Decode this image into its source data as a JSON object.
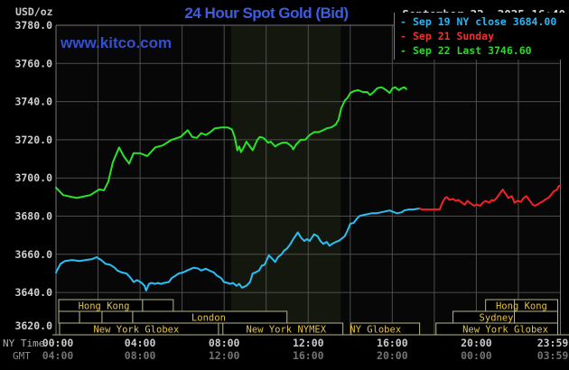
{
  "header": {
    "units": "USD/oz",
    "title": "24 Hour Spot Gold (Bid)",
    "datetime": "September 22, 2025 16:40"
  },
  "watermark": "www.kitco.com",
  "legend": {
    "items": [
      {
        "label": "Sep 19 NY close 3684.00",
        "color": "#29b6f2"
      },
      {
        "label": "Sep 21 Sunday",
        "color": "#f23030"
      },
      {
        "label": "Sep 22 Last 3746.60",
        "color": "#2ad82a"
      }
    ]
  },
  "axes": {
    "ny_time_caption": "NY Time",
    "gmt_caption": "GMT",
    "y_ticks": [
      {
        "v": 3780,
        "label": "3780.0"
      },
      {
        "v": 3760,
        "label": "3760.0"
      },
      {
        "v": 3740,
        "label": "3740.0"
      },
      {
        "v": 3720,
        "label": "3720.0"
      },
      {
        "v": 3700,
        "label": "3700.0"
      },
      {
        "v": 3680,
        "label": "3680.0"
      },
      {
        "v": 3660,
        "label": "3660.0"
      },
      {
        "v": 3640,
        "label": "3640.0"
      },
      {
        "v": 3620,
        "label": "3620.0"
      }
    ],
    "x_ticks": [
      {
        "t": 0,
        "ny": "00:00",
        "gmt": "04:00"
      },
      {
        "t": 4,
        "ny": "04:00",
        "gmt": "08:00"
      },
      {
        "t": 8,
        "ny": "08:00",
        "gmt": "12:00"
      },
      {
        "t": 12,
        "ny": "12:00",
        "gmt": "16:00"
      },
      {
        "t": 16,
        "ny": "16:00",
        "gmt": "20:00"
      },
      {
        "t": 20,
        "ny": "20:00",
        "gmt": "00:00"
      },
      {
        "t": 23.983,
        "ny": "23:59",
        "gmt": "03:59"
      }
    ]
  },
  "chart_data": {
    "type": "line",
    "title": "24 Hour Spot Gold (Bid)",
    "ylabel": "USD/oz",
    "xlabel": "NY Time (hours)",
    "xlim": [
      0,
      24
    ],
    "ylim": [
      3620,
      3780
    ],
    "grid": {
      "x_step_hours": 2,
      "y_step": 20,
      "color": "#4e4e4e"
    },
    "highlight_band_hours": [
      8.33,
      13.55
    ],
    "series": [
      {
        "name": "Sep 19 NY close 3684.00",
        "color": "#29c0f5",
        "points": [
          [
            0,
            3650.5
          ],
          [
            0.21,
            3655
          ],
          [
            0.43,
            3656.5
          ],
          [
            0.77,
            3657
          ],
          [
            1.12,
            3656.5
          ],
          [
            1.42,
            3657
          ],
          [
            1.72,
            3657.5
          ],
          [
            1.93,
            3658.5
          ],
          [
            2.15,
            3657
          ],
          [
            2.36,
            3655
          ],
          [
            2.58,
            3654.5
          ],
          [
            2.79,
            3653
          ],
          [
            2.92,
            3651.5
          ],
          [
            3.13,
            3650.5
          ],
          [
            3.35,
            3650
          ],
          [
            3.56,
            3647.5
          ],
          [
            3.69,
            3645.5
          ],
          [
            3.86,
            3646.5
          ],
          [
            4.08,
            3645
          ],
          [
            4.21,
            3643.5
          ],
          [
            4.29,
            3641
          ],
          [
            4.42,
            3644.5
          ],
          [
            4.55,
            3645
          ],
          [
            4.72,
            3644.5
          ],
          [
            4.85,
            3645
          ],
          [
            4.98,
            3644.5
          ],
          [
            5.15,
            3645
          ],
          [
            5.37,
            3645.5
          ],
          [
            5.5,
            3647.5
          ],
          [
            5.71,
            3649
          ],
          [
            5.84,
            3650
          ],
          [
            6.05,
            3650.5
          ],
          [
            6.23,
            3651.5
          ],
          [
            6.44,
            3652.5
          ],
          [
            6.57,
            3653
          ],
          [
            6.78,
            3652.5
          ],
          [
            6.91,
            3651.5
          ],
          [
            7.13,
            3652.5
          ],
          [
            7.3,
            3651.5
          ],
          [
            7.51,
            3650.5
          ],
          [
            7.64,
            3649
          ],
          [
            7.86,
            3647.5
          ],
          [
            7.99,
            3645.5
          ],
          [
            8.16,
            3645
          ],
          [
            8.29,
            3644.5
          ],
          [
            8.42,
            3645
          ],
          [
            8.59,
            3643.5
          ],
          [
            8.72,
            3644.5
          ],
          [
            8.85,
            3642.5
          ],
          [
            9.06,
            3643.5
          ],
          [
            9.23,
            3645.5
          ],
          [
            9.36,
            3650
          ],
          [
            9.49,
            3650.5
          ],
          [
            9.66,
            3651.5
          ],
          [
            9.79,
            3654
          ],
          [
            9.92,
            3654.5
          ],
          [
            10.09,
            3658.5
          ],
          [
            10.13,
            3659.5
          ],
          [
            10.3,
            3657.5
          ],
          [
            10.43,
            3656
          ],
          [
            10.56,
            3658.5
          ],
          [
            10.73,
            3660
          ],
          [
            10.86,
            3662
          ],
          [
            10.99,
            3663
          ],
          [
            11.16,
            3665.5
          ],
          [
            11.29,
            3668
          ],
          [
            11.51,
            3671.5
          ],
          [
            11.64,
            3669
          ],
          [
            11.81,
            3667
          ],
          [
            11.94,
            3668
          ],
          [
            12.07,
            3667
          ],
          [
            12.28,
            3670.5
          ],
          [
            12.45,
            3669.5
          ],
          [
            12.58,
            3667
          ],
          [
            12.71,
            3665.5
          ],
          [
            12.88,
            3666.5
          ],
          [
            13.01,
            3664.5
          ],
          [
            13.14,
            3665.5
          ],
          [
            13.31,
            3666.5
          ],
          [
            13.44,
            3667
          ],
          [
            13.57,
            3668
          ],
          [
            13.74,
            3669.5
          ],
          [
            13.87,
            3672.5
          ],
          [
            14,
            3676
          ],
          [
            14.17,
            3676.5
          ],
          [
            14.3,
            3678.5
          ],
          [
            14.43,
            3680
          ],
          [
            14.6,
            3680.5
          ],
          [
            14.81,
            3681
          ],
          [
            15.02,
            3681.5
          ],
          [
            15.24,
            3681.5
          ],
          [
            15.46,
            3682
          ],
          [
            15.67,
            3682.5
          ],
          [
            15.88,
            3683
          ],
          [
            16.1,
            3682
          ],
          [
            16.23,
            3681.5
          ],
          [
            16.44,
            3682
          ],
          [
            16.57,
            3683
          ],
          [
            16.79,
            3683.5
          ],
          [
            17,
            3683.5
          ],
          [
            17.3,
            3684
          ]
        ]
      },
      {
        "name": "Sep 21 Sunday",
        "color": "#f52222",
        "points": [
          [
            17.3,
            3684
          ],
          [
            17.4,
            3683.5
          ],
          [
            18.08,
            3683.5
          ],
          [
            18.25,
            3683.5
          ],
          [
            18.38,
            3687
          ],
          [
            18.51,
            3689.5
          ],
          [
            18.6,
            3690
          ],
          [
            18.72,
            3688.5
          ],
          [
            18.9,
            3689
          ],
          [
            19.02,
            3688
          ],
          [
            19.15,
            3688.5
          ],
          [
            19.32,
            3687
          ],
          [
            19.45,
            3686
          ],
          [
            19.58,
            3688
          ],
          [
            19.75,
            3686.5
          ],
          [
            19.88,
            3685.5
          ],
          [
            20.01,
            3686
          ],
          [
            20.18,
            3685.5
          ],
          [
            20.31,
            3687
          ],
          [
            20.44,
            3688
          ],
          [
            20.61,
            3687
          ],
          [
            20.74,
            3688.5
          ],
          [
            20.83,
            3688
          ],
          [
            20.96,
            3689.5
          ],
          [
            21.09,
            3691.5
          ],
          [
            21.26,
            3694
          ],
          [
            21.3,
            3693
          ],
          [
            21.47,
            3690.5
          ],
          [
            21.52,
            3689.5
          ],
          [
            21.69,
            3690.5
          ],
          [
            21.82,
            3687
          ],
          [
            21.95,
            3688
          ],
          [
            22.12,
            3687.5
          ],
          [
            22.25,
            3689.5
          ],
          [
            22.38,
            3690.5
          ],
          [
            22.55,
            3688
          ],
          [
            22.68,
            3686
          ],
          [
            22.77,
            3685.5
          ],
          [
            22.9,
            3686
          ],
          [
            23.03,
            3687
          ],
          [
            23.2,
            3688
          ],
          [
            23.25,
            3688.5
          ],
          [
            23.42,
            3689.5
          ],
          [
            23.55,
            3691
          ],
          [
            23.68,
            3693
          ],
          [
            23.85,
            3694
          ],
          [
            23.9,
            3695.5
          ],
          [
            23.98,
            3696
          ]
        ]
      },
      {
        "name": "Sep 22 Last 3746.60",
        "color": "#2ae42a",
        "points": [
          [
            0,
            3695
          ],
          [
            0.34,
            3691
          ],
          [
            0.99,
            3689.5
          ],
          [
            1.63,
            3691
          ],
          [
            2.06,
            3694
          ],
          [
            2.28,
            3693.5
          ],
          [
            2.49,
            3698
          ],
          [
            2.7,
            3708
          ],
          [
            3,
            3716
          ],
          [
            3.22,
            3711.5
          ],
          [
            3.48,
            3707.5
          ],
          [
            3.69,
            3713
          ],
          [
            3.99,
            3713
          ],
          [
            4.34,
            3711.5
          ],
          [
            4.72,
            3716
          ],
          [
            5.07,
            3717
          ],
          [
            5.5,
            3720
          ],
          [
            5.92,
            3721.5
          ],
          [
            6.27,
            3725
          ],
          [
            6.48,
            3721.5
          ],
          [
            6.7,
            3721
          ],
          [
            6.91,
            3723.5
          ],
          [
            7.13,
            3722.5
          ],
          [
            7.34,
            3724
          ],
          [
            7.56,
            3726
          ],
          [
            7.86,
            3726.5
          ],
          [
            8.16,
            3726.5
          ],
          [
            8.37,
            3725.5
          ],
          [
            8.5,
            3721.5
          ],
          [
            8.63,
            3714.5
          ],
          [
            8.72,
            3716.5
          ],
          [
            8.8,
            3713.5
          ],
          [
            8.93,
            3716
          ],
          [
            9.06,
            3719
          ],
          [
            9.36,
            3714.5
          ],
          [
            9.58,
            3720
          ],
          [
            9.7,
            3721.5
          ],
          [
            9.87,
            3721
          ],
          [
            10.09,
            3718.5
          ],
          [
            10.22,
            3719
          ],
          [
            10.43,
            3716.5
          ],
          [
            10.56,
            3717.5
          ],
          [
            10.78,
            3718.5
          ],
          [
            10.99,
            3718.5
          ],
          [
            11.21,
            3716.5
          ],
          [
            11.29,
            3715
          ],
          [
            11.42,
            3717.5
          ],
          [
            11.64,
            3720
          ],
          [
            11.85,
            3720
          ],
          [
            12.07,
            3722.5
          ],
          [
            12.28,
            3724
          ],
          [
            12.49,
            3724
          ],
          [
            12.71,
            3725
          ],
          [
            12.88,
            3726
          ],
          [
            13.1,
            3726.5
          ],
          [
            13.31,
            3728
          ],
          [
            13.44,
            3730.5
          ],
          [
            13.57,
            3736.5
          ],
          [
            13.74,
            3740.5
          ],
          [
            13.87,
            3742
          ],
          [
            14,
            3744.5
          ],
          [
            14.17,
            3745.5
          ],
          [
            14.38,
            3746
          ],
          [
            14.6,
            3745
          ],
          [
            14.81,
            3745
          ],
          [
            14.94,
            3743.5
          ],
          [
            15.07,
            3744.5
          ],
          [
            15.28,
            3747
          ],
          [
            15.46,
            3747.5
          ],
          [
            15.58,
            3747
          ],
          [
            15.71,
            3746
          ],
          [
            15.88,
            3744.5
          ],
          [
            16.01,
            3747
          ],
          [
            16.14,
            3747.5
          ],
          [
            16.31,
            3746
          ],
          [
            16.44,
            3747
          ],
          [
            16.57,
            3747.5
          ],
          [
            16.67,
            3746.6
          ]
        ]
      }
    ],
    "sessions": {
      "box_color": "#b6b685",
      "label_color": "#e6c33c",
      "rows": [
        {
          "rects": [
            [
              0.13,
              4.12
            ],
            [
              4.12,
              5.58
            ],
            [
              20.44,
              21.81
            ],
            [
              21.81,
              23.87
            ]
          ],
          "labels": [
            {
              "t": 2.28,
              "text": "Hong Kong"
            },
            {
              "t": 22.15,
              "text": "Hong Kong"
            }
          ]
        },
        {
          "rects": [
            [
              0.13,
              1.12
            ],
            [
              1.12,
              2.19
            ],
            [
              2.19,
              3.65
            ],
            [
              3.65,
              10.99
            ],
            [
              18.89,
              21.81
            ],
            [
              21.81,
              23.87
            ]
          ],
          "labels": [
            {
              "t": 7.26,
              "text": "London"
            },
            {
              "t": 20.95,
              "text": "Sydney"
            }
          ]
        },
        {
          "rects": [
            [
              0.17,
              7.73
            ],
            [
              7.94,
              13.65
            ],
            [
              14.04,
              17.3
            ],
            [
              18.08,
              23.87
            ]
          ],
          "labels": [
            {
              "t": 3.82,
              "text": "New York Globex"
            },
            {
              "t": 10.95,
              "text": "New York NYMEX"
            },
            {
              "t": 15.2,
              "text": "NY Globex"
            },
            {
              "t": 21.38,
              "text": "New York Globex"
            }
          ]
        }
      ]
    }
  }
}
